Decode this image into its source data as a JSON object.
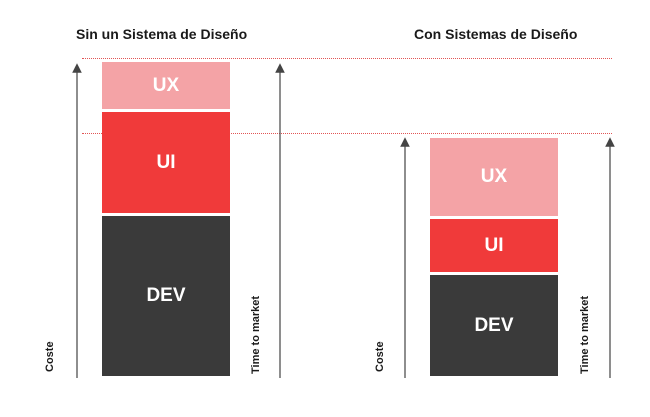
{
  "left_panel": {
    "title": "Sin un Sistema de Diseño",
    "blocks": {
      "ux": "UX",
      "ui": "UI",
      "dev": "DEV"
    },
    "axis_left_label": "Coste",
    "axis_right_label": "Time to market"
  },
  "right_panel": {
    "title": "Con Sistemas de Diseño",
    "blocks": {
      "ux": "UX",
      "ui": "UI",
      "dev": "DEV"
    },
    "axis_left_label": "Coste",
    "axis_right_label": "Time to market"
  },
  "colors": {
    "ux": "#f4a3a6",
    "ui": "#f03a3a",
    "dev": "#3a3a3a",
    "guide": "#e25555",
    "arrow": "#444444"
  }
}
